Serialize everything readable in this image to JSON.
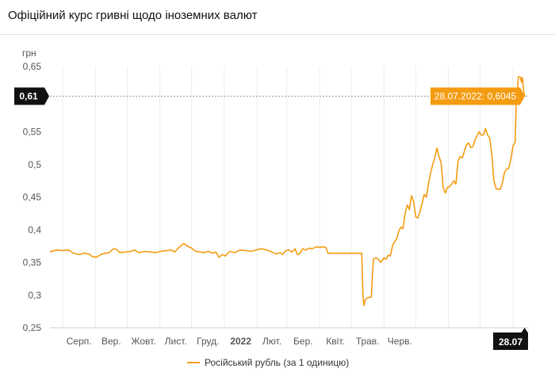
{
  "page": {
    "title": "Офіційний курс гривні щодо іноземних валют"
  },
  "chart_data": {
    "type": "line",
    "title": "",
    "xlabel": "",
    "ylabel": "грн",
    "ylim": [
      0.25,
      0.65
    ],
    "y_ticks": [
      "0,25",
      "0,3",
      "0,35",
      "0,4",
      "0,45",
      "0,5",
      "0,55",
      "0,6",
      "0,65"
    ],
    "x_ticks": [
      "Серп.",
      "Вер.",
      "Жовт.",
      "Лист.",
      "Груд.",
      "2022",
      "Лют.",
      "Бер.",
      "Квіт.",
      "Трав.",
      "Черв."
    ],
    "colors": {
      "series": "#f39c12",
      "accent": "#f39c12",
      "dark": "#111111"
    },
    "crosshair": {
      "y_label": "0,61",
      "x_label": "28.07",
      "tooltip": "28.07.2022: 0,6045"
    },
    "series": [
      {
        "name": "Російський рубль (за 1 одиницю)",
        "x_unit": "days from 2021-07-20",
        "points": [
          [
            0,
            0.366
          ],
          [
            6,
            0.369
          ],
          [
            12,
            0.368
          ],
          [
            18,
            0.369
          ],
          [
            22,
            0.364
          ],
          [
            28,
            0.362
          ],
          [
            32,
            0.364
          ],
          [
            37,
            0.363
          ],
          [
            40,
            0.359
          ],
          [
            44,
            0.358
          ],
          [
            48,
            0.362
          ],
          [
            52,
            0.364
          ],
          [
            56,
            0.365
          ],
          [
            60,
            0.371
          ],
          [
            63,
            0.37
          ],
          [
            66,
            0.365
          ],
          [
            72,
            0.366
          ],
          [
            76,
            0.367
          ],
          [
            80,
            0.369
          ],
          [
            84,
            0.365
          ],
          [
            90,
            0.367
          ],
          [
            95,
            0.366
          ],
          [
            100,
            0.365
          ],
          [
            105,
            0.367
          ],
          [
            110,
            0.368
          ],
          [
            115,
            0.369
          ],
          [
            118,
            0.366
          ],
          [
            122,
            0.373
          ],
          [
            125,
            0.377
          ],
          [
            127,
            0.379
          ],
          [
            130,
            0.375
          ],
          [
            134,
            0.372
          ],
          [
            138,
            0.367
          ],
          [
            142,
            0.366
          ],
          [
            146,
            0.365
          ],
          [
            150,
            0.367
          ],
          [
            154,
            0.364
          ],
          [
            157,
            0.366
          ],
          [
            160,
            0.358
          ],
          [
            163,
            0.362
          ],
          [
            166,
            0.36
          ],
          [
            170,
            0.367
          ],
          [
            175,
            0.365
          ],
          [
            180,
            0.369
          ],
          [
            185,
            0.368
          ],
          [
            190,
            0.367
          ],
          [
            195,
            0.369
          ],
          [
            200,
            0.371
          ],
          [
            205,
            0.369
          ],
          [
            210,
            0.366
          ],
          [
            214,
            0.363
          ],
          [
            218,
            0.365
          ],
          [
            220,
            0.362
          ],
          [
            223,
            0.368
          ],
          [
            226,
            0.369
          ],
          [
            229,
            0.366
          ],
          [
            232,
            0.371
          ],
          [
            234,
            0.362
          ],
          [
            236,
            0.363
          ],
          [
            239,
            0.371
          ],
          [
            242,
            0.369
          ],
          [
            245,
            0.372
          ],
          [
            248,
            0.371
          ],
          [
            252,
            0.374
          ],
          [
            255,
            0.373
          ],
          [
            258,
            0.374
          ],
          [
            261,
            0.373
          ],
          [
            263,
            0.364
          ],
          [
            270,
            0.364
          ],
          [
            280,
            0.364
          ],
          [
            290,
            0.364
          ],
          [
            295,
            0.364
          ],
          [
            296,
            0.3
          ],
          [
            297,
            0.284
          ],
          [
            298,
            0.292
          ],
          [
            300,
            0.296
          ],
          [
            304,
            0.297
          ],
          [
            305,
            0.33
          ],
          [
            306,
            0.355
          ],
          [
            308,
            0.357
          ],
          [
            310,
            0.356
          ],
          [
            313,
            0.35
          ],
          [
            316,
            0.357
          ],
          [
            318,
            0.355
          ],
          [
            320,
            0.361
          ],
          [
            322,
            0.36
          ],
          [
            324,
            0.375
          ],
          [
            326,
            0.382
          ],
          [
            328,
            0.386
          ],
          [
            330,
            0.398
          ],
          [
            332,
            0.404
          ],
          [
            334,
            0.402
          ],
          [
            336,
            0.425
          ],
          [
            338,
            0.438
          ],
          [
            340,
            0.431
          ],
          [
            342,
            0.452
          ],
          [
            344,
            0.443
          ],
          [
            346,
            0.42
          ],
          [
            348,
            0.418
          ],
          [
            350,
            0.428
          ],
          [
            352,
            0.44
          ],
          [
            354,
            0.454
          ],
          [
            356,
            0.45
          ],
          [
            358,
            0.47
          ],
          [
            360,
            0.486
          ],
          [
            362,
            0.5
          ],
          [
            364,
            0.51
          ],
          [
            366,
            0.525
          ],
          [
            368,
            0.512
          ],
          [
            370,
            0.503
          ],
          [
            372,
            0.465
          ],
          [
            374,
            0.456
          ],
          [
            376,
            0.465
          ],
          [
            378,
            0.466
          ],
          [
            380,
            0.47
          ],
          [
            382,
            0.475
          ],
          [
            384,
            0.47
          ],
          [
            386,
            0.505
          ],
          [
            388,
            0.512
          ],
          [
            390,
            0.51
          ],
          [
            392,
            0.52
          ],
          [
            394,
            0.53
          ],
          [
            396,
            0.533
          ],
          [
            398,
            0.526
          ],
          [
            400,
            0.527
          ],
          [
            402,
            0.537
          ],
          [
            404,
            0.544
          ],
          [
            406,
            0.55
          ],
          [
            408,
            0.545
          ],
          [
            410,
            0.545
          ],
          [
            412,
            0.555
          ],
          [
            414,
            0.545
          ],
          [
            416,
            0.54
          ],
          [
            418,
            0.515
          ],
          [
            420,
            0.475
          ],
          [
            422,
            0.463
          ],
          [
            424,
            0.462
          ],
          [
            426,
            0.462
          ],
          [
            428,
            0.472
          ],
          [
            430,
            0.488
          ],
          [
            432,
            0.493
          ],
          [
            434,
            0.494
          ],
          [
            436,
            0.508
          ],
          [
            438,
            0.528
          ],
          [
            440,
            0.534
          ],
          [
            441,
            0.59
          ],
          [
            442,
            0.605
          ],
          [
            443,
            0.634
          ],
          [
            445,
            0.634
          ],
          [
            446,
            0.626
          ],
          [
            447,
            0.633
          ],
          [
            448,
            0.613
          ],
          [
            449,
            0.6045
          ]
        ]
      }
    ]
  }
}
